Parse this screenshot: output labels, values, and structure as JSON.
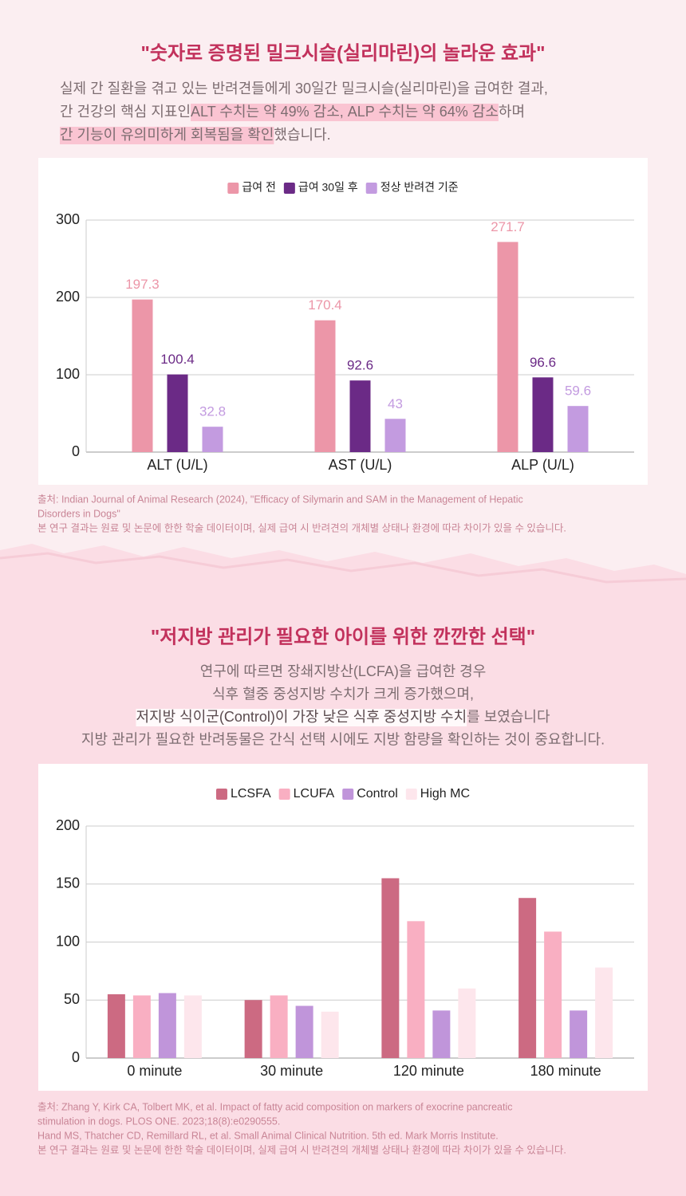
{
  "sections": [
    {
      "title": "\"숫자로 증명된 밀크시슬(실리마린)의 놀라운 효과\"",
      "paragraph": [
        [
          {
            "text": "실제 간 질환을 겪고 있는 반려견들에게 30일간 밀크시슬(실리마린)을 급여한 결과,",
            "highlight": false
          }
        ],
        [
          {
            "text": "간 건강의 핵심 지표인 ",
            "highlight": false
          },
          {
            "text": "ALT 수치는 약 49% 감소, ALP 수치는 약 64% 감소",
            "highlight": true
          },
          {
            "text": "하며",
            "highlight": false
          }
        ],
        [
          {
            "text": "간 기능이 유의미하게 회복됨을 확인",
            "highlight": true
          },
          {
            "text": "했습니다.",
            "highlight": false
          }
        ]
      ],
      "sources": [
        "출처: Indian Journal of Animal Research (2024), \"Efficacy of Silymarin and SAM in the Management of Hepatic",
        "Disorders in Dogs\"",
        "본 연구 결과는 원료 및 논문에 한한 학술 데이터이며, 실제 급여 시 반려견의 개체별 상태나 환경에 따라 차이가 있을 수 있습니다."
      ]
    },
    {
      "title": "\"저지방 관리가 필요한 아이를 위한 깐깐한 선택\"",
      "paragraph": [
        [
          {
            "text": "연구에 따르면 장쇄지방산(LCFA)을 급여한 경우",
            "highlight": false
          }
        ],
        [
          {
            "text": "식후 혈중 중성지방 수치가 크게 증가했으며,",
            "highlight": false
          }
        ],
        [
          {
            "text": "저지방 식이군(Control)이 가장 낮은 식후 중성지방 수치",
            "highlight": true
          },
          {
            "text": "를 보였습니다",
            "highlight": false
          }
        ],
        [
          {
            "text": "지방 관리가 필요한 반려동물은 간식 선택 시에도 지방 함량을 확인하는 것이 중요합니다.",
            "highlight": false
          }
        ]
      ],
      "sources": [
        "출처: Zhang Y, Kirk CA, Tolbert MK, et al. Impact of fatty acid composition on markers of exocrine pancreatic",
        "stimulation in dogs. PLOS ONE. 2023;18(8):e0290555.",
        "Hand MS, Thatcher CD, Remillard RL, et al. Small Animal Clinical Nutrition. 5th ed. Mark Morris Institute.",
        "본 연구 결과는 원료 및 논문에 한한 학술 데이터이며, 실제 급여 시 반려견의 개체별 상태나 환경에 따라 차이가 있을 수 있습니다."
      ]
    }
  ],
  "chart_data": [
    {
      "type": "bar",
      "legend": "top",
      "grid": true,
      "show_value_labels": true,
      "categories": [
        "ALT (U/L)",
        "AST (U/L)",
        "ALP (U/L)"
      ],
      "series": [
        {
          "name": "급여 전",
          "color": "#ec96a8",
          "values": [
            197.3,
            170.4,
            271.7
          ]
        },
        {
          "name": "급여 30일 후",
          "color": "#6b2a86",
          "values": [
            100.4,
            92.6,
            96.6
          ]
        },
        {
          "name": "정상 반려견 기준",
          "color": "#c39be0",
          "values": [
            32.8,
            43,
            59.6
          ]
        }
      ],
      "ylim": [
        0,
        300
      ],
      "yticks": [
        0,
        100,
        200,
        300
      ]
    },
    {
      "type": "bar",
      "legend": "top",
      "grid": true,
      "show_value_labels": false,
      "categories": [
        "0 minute",
        "30 minute",
        "120 minute",
        "180 minute"
      ],
      "series": [
        {
          "name": "LCSFA",
          "color": "#cc6a82",
          "values": [
            55,
            50,
            155,
            138
          ]
        },
        {
          "name": "LCUFA",
          "color": "#f9afc2",
          "values": [
            54,
            54,
            118,
            109
          ]
        },
        {
          "name": "Control",
          "color": "#c095da",
          "values": [
            56,
            45,
            41,
            41
          ]
        },
        {
          "name": "High MC",
          "color": "#fde6ec",
          "values": [
            54,
            40,
            60,
            78
          ]
        }
      ],
      "ylim": [
        0,
        200
      ],
      "yticks": [
        0,
        50,
        100,
        150,
        200
      ]
    }
  ]
}
